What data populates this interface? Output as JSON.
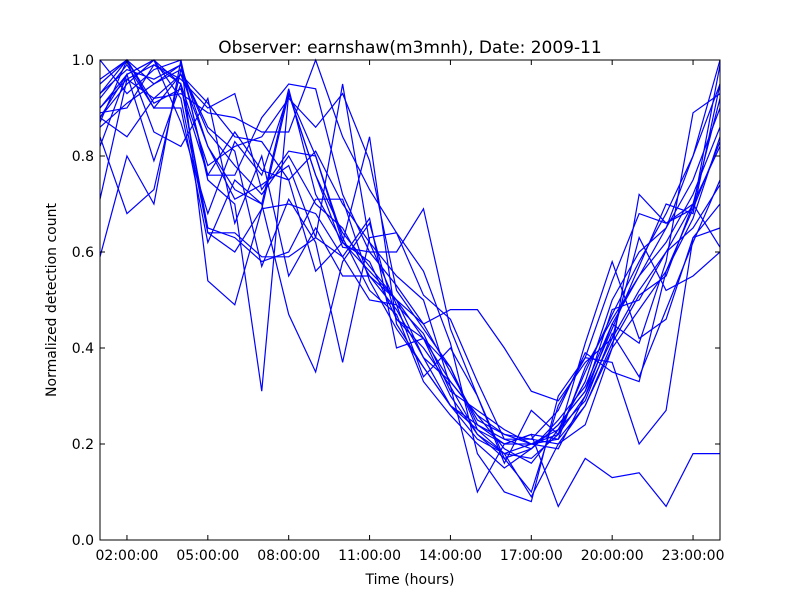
{
  "chart_data": {
    "type": "line",
    "title": "Observer: earnshaw(m3mnh), Date: 2009-11",
    "xlabel": "Time (hours)",
    "ylabel": "Normalized detection count",
    "xlim": [
      1,
      24
    ],
    "ylim": [
      0,
      1
    ],
    "xticks": [
      2,
      5,
      8,
      11,
      14,
      17,
      20,
      23
    ],
    "xtick_labels": [
      "02:00:00",
      "05:00:00",
      "08:00:00",
      "11:00:00",
      "14:00:00",
      "17:00:00",
      "20:00:00",
      "23:00:00"
    ],
    "yticks": [
      0,
      0.2,
      0.4,
      0.6,
      0.8,
      1.0
    ],
    "ytick_labels": [
      "0.0",
      "0.2",
      "0.4",
      "0.6",
      "0.8",
      "1.0"
    ],
    "line_color": "#0000ff",
    "grid": false,
    "x": [
      1,
      2,
      3,
      4,
      5,
      6,
      7,
      8,
      9,
      10,
      11,
      12,
      13,
      14,
      15,
      16,
      17,
      18,
      19,
      20,
      21,
      22,
      23,
      24
    ],
    "series": [
      {
        "values": [
          0.95,
          1.0,
          0.9,
          0.97,
          0.82,
          0.73,
          0.7,
          0.94,
          0.72,
          0.62,
          0.58,
          0.46,
          0.4,
          0.32,
          0.22,
          0.18,
          0.2,
          0.22,
          0.3,
          0.42,
          0.52,
          0.6,
          0.7,
          0.92
        ]
      },
      {
        "values": [
          0.9,
          0.97,
          1.0,
          0.92,
          0.64,
          0.6,
          0.69,
          0.93,
          0.76,
          0.64,
          0.57,
          0.5,
          0.42,
          0.3,
          0.22,
          0.17,
          0.19,
          0.25,
          0.32,
          0.45,
          0.55,
          0.65,
          0.8,
          1.0
        ]
      },
      {
        "values": [
          0.86,
          0.91,
          0.95,
          0.98,
          0.85,
          0.78,
          0.72,
          0.8,
          0.7,
          0.65,
          0.55,
          0.48,
          0.38,
          0.28,
          0.24,
          0.2,
          0.2,
          0.23,
          0.33,
          0.5,
          0.6,
          0.65,
          0.75,
          0.9
        ]
      },
      {
        "values": [
          0.93,
          0.98,
          0.96,
          0.99,
          0.76,
          0.76,
          0.88,
          0.95,
          0.94,
          0.72,
          0.6,
          0.53,
          0.45,
          0.35,
          0.25,
          0.22,
          0.21,
          0.2,
          0.28,
          0.4,
          0.48,
          0.56,
          0.67,
          0.84
        ]
      },
      {
        "values": [
          0.88,
          0.95,
          1.0,
          0.95,
          0.65,
          0.63,
          0.58,
          0.6,
          0.71,
          0.71,
          0.54,
          0.44,
          0.36,
          0.28,
          0.21,
          0.18,
          0.17,
          0.22,
          0.35,
          0.47,
          0.58,
          0.68,
          0.8,
          0.95
        ]
      },
      {
        "values": [
          1.0,
          0.93,
          0.98,
          1.0,
          0.75,
          0.7,
          0.31,
          0.93,
          0.8,
          0.63,
          0.52,
          0.47,
          0.33,
          0.26,
          0.2,
          0.15,
          0.19,
          0.24,
          0.31,
          0.48,
          0.5,
          0.6,
          0.65,
          0.74
        ]
      },
      {
        "values": [
          0.88,
          0.84,
          0.92,
          0.97,
          0.91,
          0.84,
          0.83,
          0.75,
          0.81,
          0.7,
          0.62,
          0.49,
          0.43,
          0.31,
          0.27,
          0.23,
          0.2,
          0.21,
          0.36,
          0.46,
          0.55,
          0.62,
          0.72,
          0.86
        ]
      },
      {
        "values": [
          0.92,
          0.99,
          0.9,
          0.9,
          0.62,
          0.75,
          0.7,
          0.47,
          0.35,
          0.58,
          0.66,
          0.46,
          0.42,
          0.36,
          0.23,
          0.2,
          0.22,
          0.21,
          0.28,
          0.41,
          0.51,
          0.55,
          0.7,
          0.82
        ]
      },
      {
        "values": [
          0.96,
          1.0,
          0.85,
          0.82,
          0.92,
          0.66,
          0.8,
          0.55,
          0.65,
          0.55,
          0.55,
          0.5,
          0.38,
          0.33,
          0.26,
          0.19,
          0.16,
          0.23,
          0.29,
          0.43,
          0.34,
          0.48,
          0.62,
          0.75
        ]
      },
      {
        "values": [
          0.82,
          0.97,
          0.79,
          0.95,
          0.78,
          0.82,
          0.84,
          0.92,
          0.86,
          0.93,
          0.79,
          0.52,
          0.44,
          0.36,
          0.24,
          0.21,
          0.19,
          0.24,
          0.31,
          0.44,
          0.57,
          0.7,
          0.68,
          0.95
        ]
      },
      {
        "values": [
          0.59,
          0.8,
          0.7,
          1.0,
          0.54,
          0.49,
          0.69,
          0.7,
          0.68,
          0.59,
          0.5,
          0.49,
          0.34,
          0.4,
          0.3,
          0.17,
          0.1,
          0.28,
          0.38,
          0.54,
          0.68,
          0.66,
          0.7,
          0.61
        ]
      },
      {
        "values": [
          0.71,
          0.96,
          0.92,
          0.93,
          0.89,
          0.88,
          0.85,
          0.85,
          1.0,
          0.84,
          0.73,
          0.64,
          0.51,
          0.46,
          0.33,
          0.21,
          0.21,
          0.27,
          0.39,
          0.35,
          0.33,
          0.56,
          0.69,
          0.83
        ]
      },
      {
        "values": [
          0.84,
          0.68,
          0.73,
          0.98,
          0.86,
          0.81,
          0.57,
          0.71,
          0.62,
          0.37,
          0.63,
          0.64,
          0.56,
          0.41,
          0.18,
          0.1,
          0.08,
          0.3,
          0.38,
          0.37,
          0.2,
          0.27,
          0.63,
          0.7
        ]
      },
      {
        "values": [
          0.89,
          0.9,
          0.99,
          0.95,
          0.64,
          0.64,
          0.59,
          0.59,
          0.63,
          0.95,
          0.62,
          0.55,
          0.5,
          0.32,
          0.1,
          0.2,
          0.22,
          0.07,
          0.17,
          0.13,
          0.14,
          0.07,
          0.18,
          0.18
        ]
      },
      {
        "values": [
          0.87,
          1.0,
          0.91,
          0.94,
          0.76,
          0.85,
          0.77,
          0.75,
          0.56,
          0.62,
          0.84,
          0.45,
          0.36,
          0.28,
          0.23,
          0.18,
          0.09,
          0.2,
          0.24,
          0.4,
          0.72,
          0.66,
          0.69,
          0.99
        ]
      },
      {
        "values": [
          0.88,
          0.97,
          1.0,
          0.87,
          0.68,
          0.83,
          0.76,
          0.93,
          0.76,
          0.61,
          0.6,
          0.6,
          0.69,
          0.44,
          0.3,
          0.16,
          0.27,
          0.22,
          0.41,
          0.58,
          0.42,
          0.46,
          0.63,
          0.65
        ]
      },
      {
        "values": [
          0.9,
          0.96,
          0.99,
          0.96,
          0.9,
          0.93,
          0.73,
          0.81,
          0.8,
          0.62,
          0.56,
          0.5,
          0.45,
          0.48,
          0.48,
          0.4,
          0.31,
          0.29,
          0.37,
          0.42,
          0.63,
          0.52,
          0.55,
          0.6
        ]
      },
      {
        "values": [
          0.93,
          1.0,
          0.95,
          0.99,
          0.82,
          0.71,
          0.74,
          0.78,
          0.63,
          0.59,
          0.67,
          0.4,
          0.42,
          0.33,
          0.26,
          0.22,
          0.2,
          0.19,
          0.3,
          0.45,
          0.41,
          0.58,
          0.89,
          0.93
        ]
      }
    ]
  }
}
